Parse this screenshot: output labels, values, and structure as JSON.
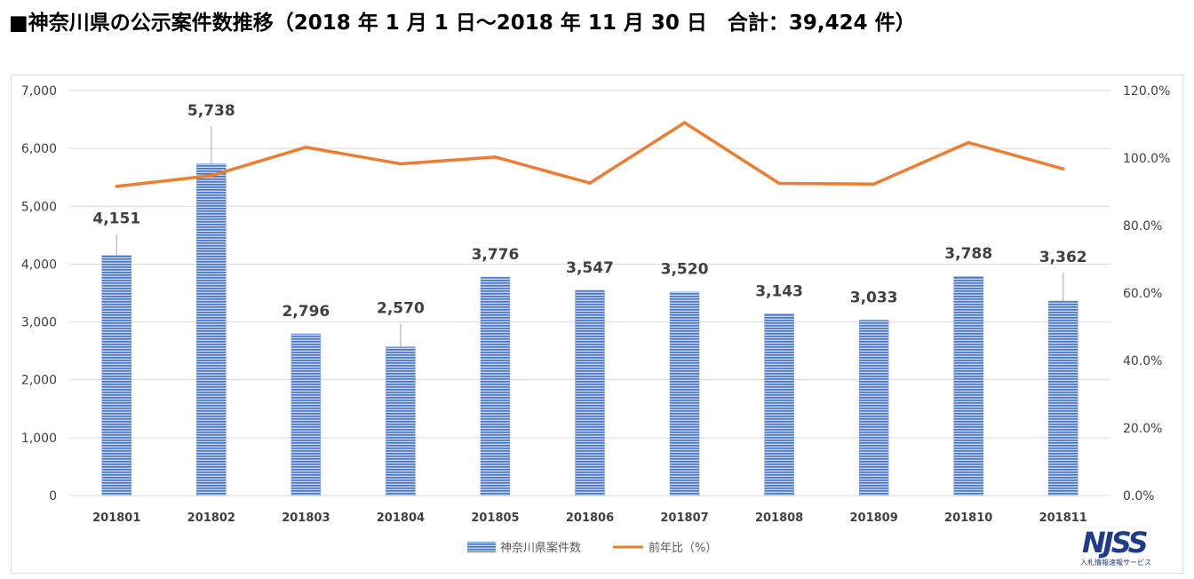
{
  "title": "■神奈川県の公示案件数推移（2018 年 1 月 1 日～2018 年 11 月 30 日　合計：39,424 件）",
  "logo": {
    "main": "NJSS",
    "sub": "入札情報速報サービス"
  },
  "colors": {
    "bar": "#4472c4",
    "bar_stripe": "#c9d7ee",
    "line": "#ed7d31",
    "grid": "#d9d9d9",
    "axis_text": "#404040"
  },
  "chart_data": {
    "type": "bar",
    "title": "",
    "categories": [
      "201801",
      "201802",
      "201803",
      "201804",
      "201805",
      "201806",
      "201807",
      "201808",
      "201809",
      "201810",
      "201811"
    ],
    "series": [
      {
        "name": "神奈川県案件数",
        "type": "bar",
        "axis": "left",
        "values": [
          4151,
          5738,
          2796,
          2570,
          3776,
          3547,
          3520,
          3143,
          3033,
          3788,
          3362
        ],
        "labels": [
          "4,151",
          "5,738",
          "2,796",
          "2,570",
          "3,776",
          "3,547",
          "3,520",
          "3,143",
          "3,033",
          "3,788",
          "3,362"
        ]
      },
      {
        "name": "前年比（%）",
        "type": "line",
        "axis": "right",
        "values": [
          91.6,
          94.8,
          103.2,
          98.3,
          100.3,
          92.6,
          110.5,
          92.5,
          92.3,
          104.6,
          96.8
        ]
      }
    ],
    "y_left": {
      "ylim": [
        0,
        7000
      ],
      "ticks": [
        "0",
        "1,000",
        "2,000",
        "3,000",
        "4,000",
        "5,000",
        "6,000",
        "7,000"
      ]
    },
    "y_right": {
      "ylim": [
        0,
        120
      ],
      "ticks": [
        "0.0%",
        "20.0%",
        "40.0%",
        "60.0%",
        "80.0%",
        "100.0%",
        "120.0%"
      ]
    },
    "grid": true,
    "legend_position": "bottom"
  }
}
